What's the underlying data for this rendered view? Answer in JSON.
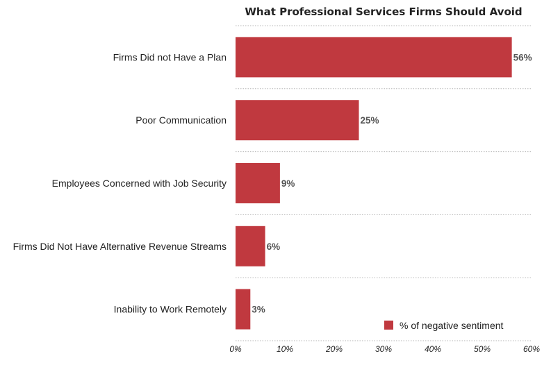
{
  "chart_data": {
    "type": "bar",
    "orientation": "horizontal",
    "title": "What Professional Services Firms Should Avoid",
    "categories": [
      "Firms Did not Have a Plan",
      "Poor Communication",
      "Employees Concerned with Job Security",
      "Firms Did Not Have Alternative Revenue Streams",
      "Inability to Work Remotely"
    ],
    "series": [
      {
        "name": "% of negative sentiment",
        "values": [
          56,
          25,
          9,
          6,
          3
        ]
      }
    ],
    "value_labels": [
      "56%",
      "25%",
      "9%",
      "6%",
      "3%"
    ],
    "x_ticks": [
      "0%",
      "10%",
      "20%",
      "30%",
      "40%",
      "50%",
      "60%"
    ],
    "xlim": [
      0,
      60
    ],
    "xlabel": "",
    "ylabel": "",
    "grid": "dotted horizontal separators",
    "legend_position": "bottom-right",
    "bar_color": "#c0393f"
  }
}
